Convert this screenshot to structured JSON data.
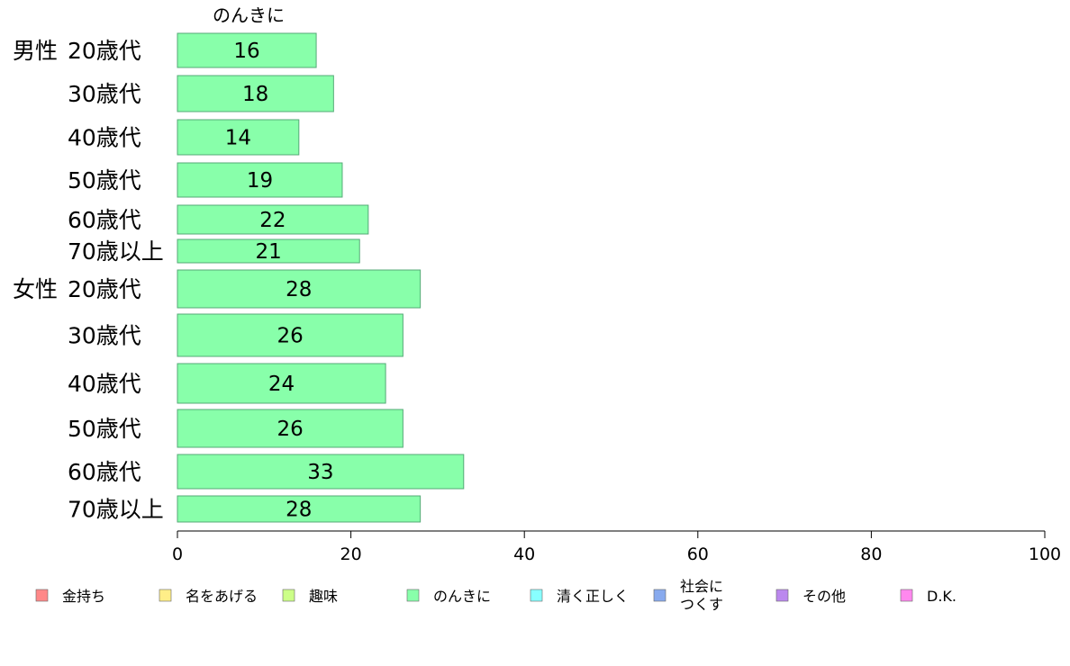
{
  "chart_data": {
    "type": "bar",
    "orientation": "horizontal",
    "series_label": "のんきに",
    "groups": [
      {
        "label": "男性",
        "categories": [
          "20歳代",
          "30歳代",
          "40歳代",
          "50歳代",
          "60歳代",
          "70歳以上"
        ],
        "values": [
          16,
          18,
          14,
          19,
          22,
          21
        ]
      },
      {
        "label": "女性",
        "categories": [
          "20歳代",
          "30歳代",
          "40歳代",
          "50歳代",
          "60歳代",
          "70歳以上"
        ],
        "values": [
          28,
          26,
          24,
          26,
          33,
          28
        ]
      }
    ],
    "xlim": [
      0,
      100
    ],
    "xticks": [
      "0",
      "20",
      "40",
      "60",
      "80",
      "100"
    ],
    "grid": false,
    "bar_color": "#88ffaa",
    "bar_border_color": "#55aa77",
    "legend": {
      "placement": "bottom",
      "items": [
        {
          "label": "金持ち",
          "color": "#ff8888"
        },
        {
          "label": "名をあげる",
          "color": "#ffee88"
        },
        {
          "label": "趣味",
          "color": "#ccff88"
        },
        {
          "label": "のんきに",
          "color": "#88ffaa"
        },
        {
          "label": "清く正しく",
          "color": "#88ffff"
        },
        {
          "label": "社会に\nつくす",
          "color": "#88aaee"
        },
        {
          "label": "その他",
          "color": "#bb88ee"
        },
        {
          "label": "D.K.",
          "color": "#ff88ee"
        }
      ]
    }
  }
}
